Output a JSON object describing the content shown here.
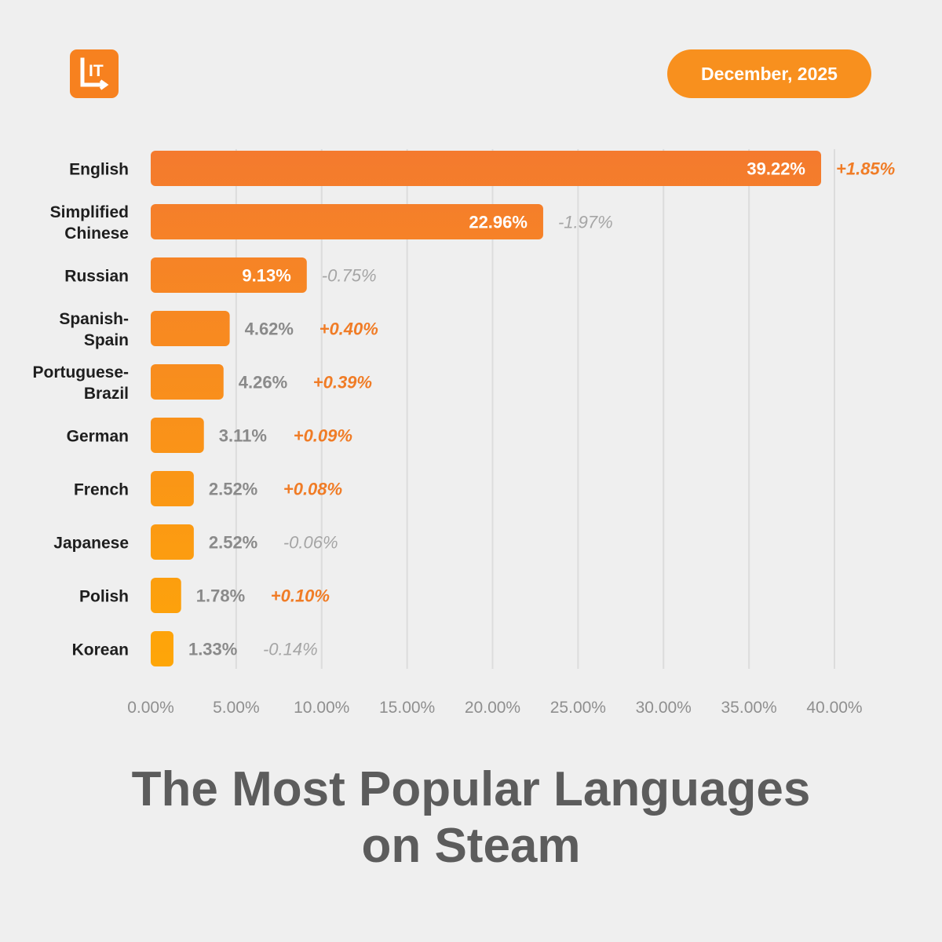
{
  "header": {
    "logo_text": "IT",
    "date": "December, 2025"
  },
  "colors": {
    "background": "#efefef",
    "accent": "#f7811f",
    "positive_change": "#f07c26",
    "negative_change": "#a5a5a5",
    "value_label_outside": "#8a8a8a",
    "value_label_inside": "#ffffff",
    "grid": "#dcdcdc",
    "title": "#5c5c5c",
    "bar_gradient_top": "#f47a2e",
    "bar_gradient_bottom": "#fea608"
  },
  "title": {
    "line1": "The Most Popular Languages",
    "line2": "on Steam"
  },
  "chart_data": {
    "type": "bar",
    "orientation": "horizontal",
    "categories": [
      [
        "English"
      ],
      [
        "Simplified",
        "Chinese"
      ],
      [
        "Russian"
      ],
      [
        "Spanish-",
        "Spain"
      ],
      [
        "Portuguese-",
        "Brazil"
      ],
      [
        "German"
      ],
      [
        "French"
      ],
      [
        "Japanese"
      ],
      [
        "Polish"
      ],
      [
        "Korean"
      ]
    ],
    "values": [
      39.22,
      22.96,
      9.13,
      4.62,
      4.26,
      3.11,
      2.52,
      2.52,
      1.78,
      1.33
    ],
    "value_labels": [
      "39.22%",
      "22.96%",
      "9.13%",
      "4.62%",
      "4.26%",
      "3.11%",
      "2.52%",
      "2.52%",
      "1.78%",
      "1.33%"
    ],
    "changes": [
      "+1.85%",
      "-1.97%",
      "-0.75%",
      "+0.40%",
      "+0.39%",
      "+0.09%",
      "+0.08%",
      "-0.06%",
      "+0.10%",
      "-0.14%"
    ],
    "x_ticks": [
      0,
      5,
      10,
      15,
      20,
      25,
      30,
      35,
      40
    ],
    "x_tick_labels": [
      "0.00%",
      "5.00%",
      "10.00%",
      "15.00%",
      "20.00%",
      "25.00%",
      "30.00%",
      "35.00%",
      "40.00%"
    ],
    "xlim": [
      0,
      40
    ],
    "grid": true,
    "legend": "none"
  }
}
